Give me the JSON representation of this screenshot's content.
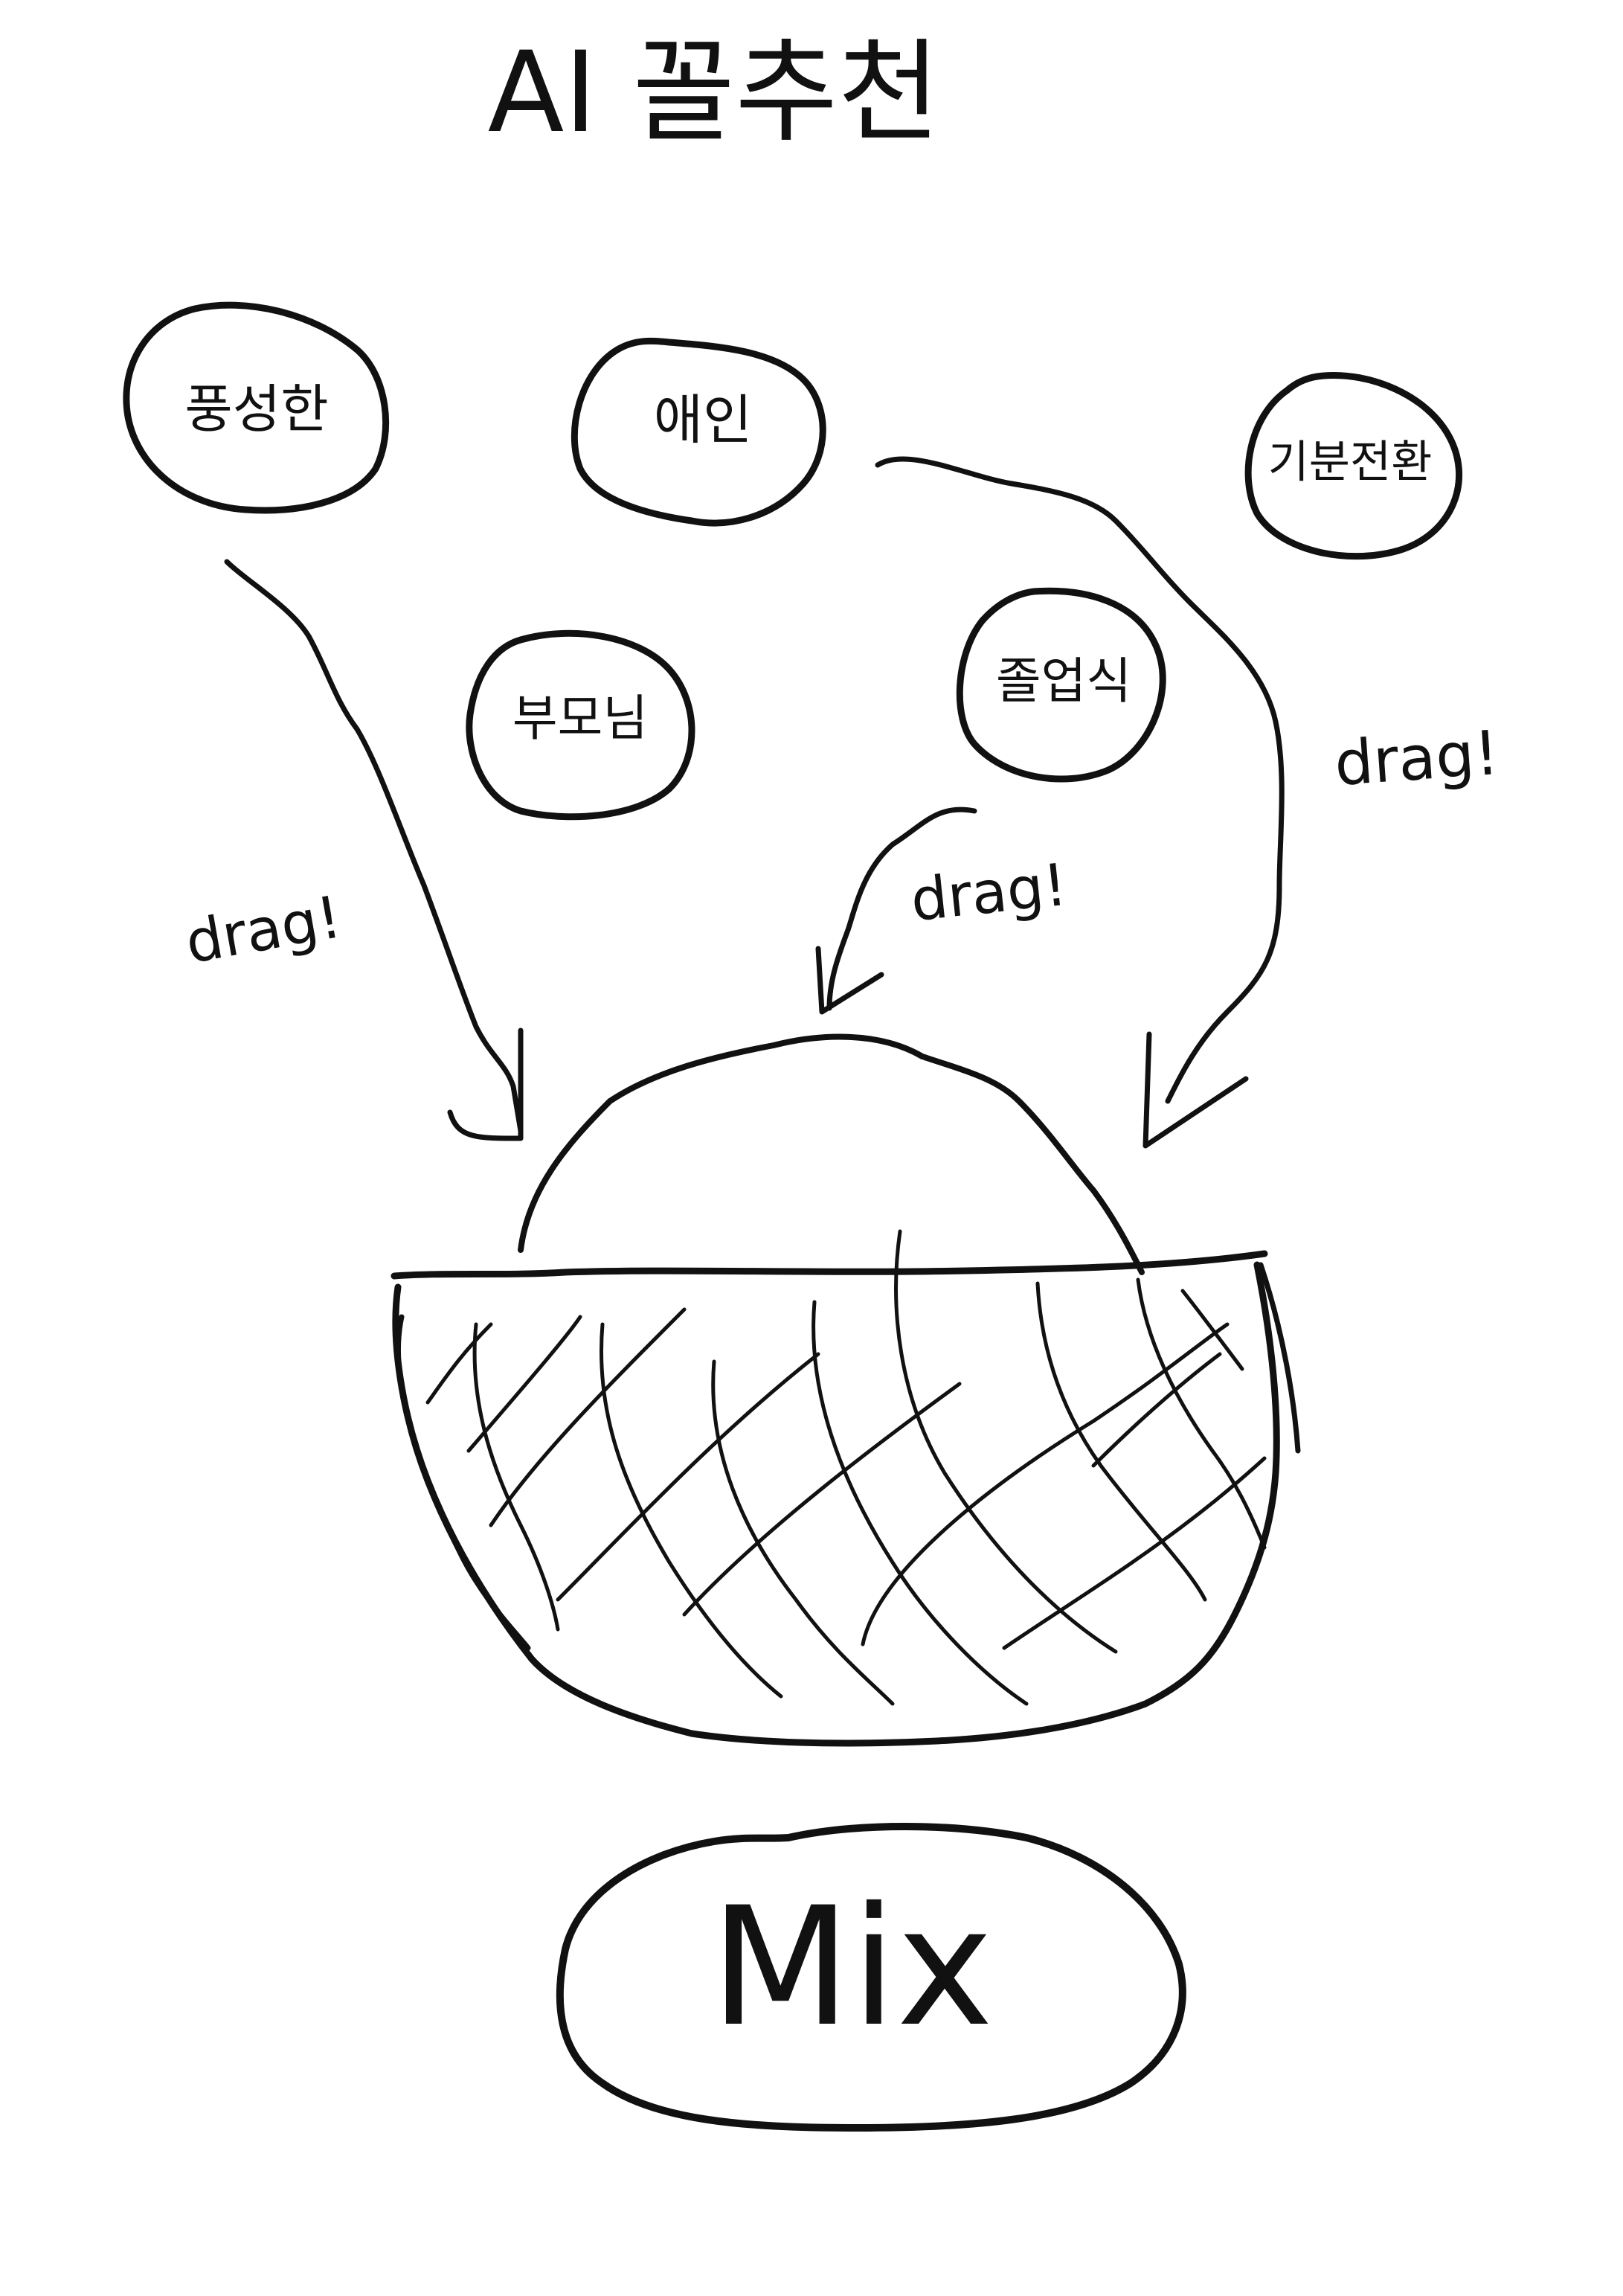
{
  "title": "AI 꼴추천",
  "chips": [
    {
      "id": "abundant",
      "label": "풍성한"
    },
    {
      "id": "lover",
      "label": "애인"
    },
    {
      "id": "mood",
      "label": "기분전환"
    },
    {
      "id": "parents",
      "label": "부모님"
    },
    {
      "id": "graduation",
      "label": "졸업식"
    }
  ],
  "drag_labels": [
    "drag!",
    "drag!",
    "drag!"
  ],
  "mix_button": {
    "label": "Mix"
  },
  "colors": {
    "ink": "#111111",
    "paper": "#ffffff"
  }
}
